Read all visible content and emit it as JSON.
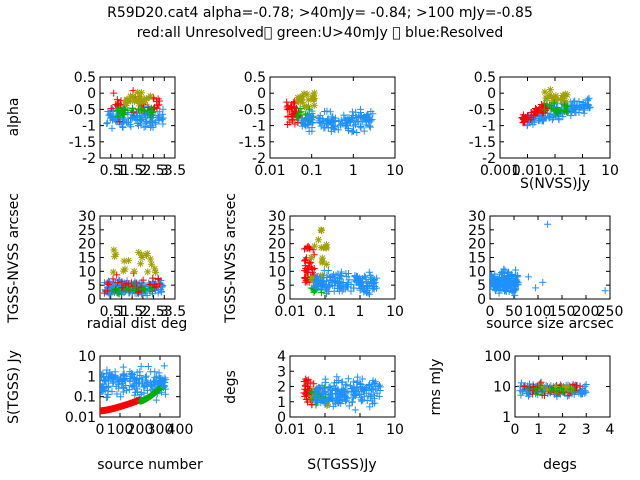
{
  "figure": {
    "title_line1": "R59D20.cat4 alpha=-0.78; >40mJy= -0.84; >100 mJy=-0.85",
    "title_line2": "red:all Unresolved\u0000 green:U>40mJy \u0000 blue:Resolved",
    "colors": {
      "red": "#ff0000",
      "green": "#00b000",
      "blue": "#1e90ff",
      "olive": "#a0a000",
      "axis": "#000000"
    }
  },
  "chart_data": [
    {
      "id": "p1",
      "type": "scatter",
      "ylabel": "alpha",
      "xlabel": "",
      "xscale": "linear",
      "yscale": "linear",
      "xlim": [
        0,
        3.5
      ],
      "ylim": [
        -2,
        0.5
      ],
      "xticks": [
        0.5,
        1,
        1.5,
        2,
        2.5,
        3,
        3.5
      ],
      "xticklabels": [
        "0.5",
        "1",
        "1.5",
        "2",
        "2.5",
        "3",
        "3.5"
      ],
      "yticks": [
        -2,
        -1.5,
        -1,
        -0.5,
        0,
        0.5
      ],
      "yticklabels": [
        "-2",
        "-1.5",
        "-1",
        "-0.5",
        "0",
        "0.5"
      ],
      "series": [
        {
          "color": "blue",
          "cluster": {
            "n": 140,
            "x": [
              0.3,
              3.0
            ],
            "y": [
              -1.2,
              -0.3
            ]
          }
        },
        {
          "color": "red",
          "cluster": {
            "n": 35,
            "x": [
              0.3,
              2.8
            ],
            "y": [
              -1.0,
              0.2
            ]
          }
        },
        {
          "color": "olive",
          "cluster": {
            "n": 25,
            "x": [
              1.2,
              2.5
            ],
            "y": [
              -0.6,
              0.3
            ]
          }
        },
        {
          "color": "green",
          "cluster": {
            "n": 25,
            "x": [
              0.8,
              2.5
            ],
            "y": [
              -0.8,
              -0.3
            ]
          }
        }
      ]
    },
    {
      "id": "p2",
      "type": "scatter",
      "ylabel": "",
      "xlabel": "",
      "xscale": "log",
      "yscale": "linear",
      "xlim": [
        0.01,
        10
      ],
      "ylim": [
        -2,
        0.5
      ],
      "xticks": [
        0.01,
        0.1,
        1,
        10
      ],
      "xticklabels": [
        "0.01",
        "0.1",
        "1",
        "10"
      ],
      "yticks": [
        -2,
        -1.5,
        -1,
        -0.5,
        0,
        0.5
      ],
      "yticklabels": [
        "-2",
        "-1.5",
        "-1",
        "-0.5",
        "0",
        "0.5"
      ],
      "series": [
        {
          "color": "red",
          "cluster": {
            "n": 40,
            "x": [
              0.025,
              0.05
            ],
            "y": [
              -1.2,
              0.0
            ]
          }
        },
        {
          "color": "olive",
          "cluster": {
            "n": 20,
            "x": [
              0.04,
              0.12
            ],
            "y": [
              -0.6,
              0.2
            ]
          }
        },
        {
          "color": "green",
          "cluster": {
            "n": 20,
            "x": [
              0.04,
              0.12
            ],
            "y": [
              -1.0,
              -0.4
            ]
          }
        },
        {
          "color": "blue",
          "cluster": {
            "n": 140,
            "x": [
              0.05,
              3.0
            ],
            "y": [
              -1.3,
              -0.4
            ]
          }
        }
      ]
    },
    {
      "id": "p3",
      "type": "scatter",
      "ylabel": "",
      "xlabel": "S(NVSS)Jy",
      "xscale": "log",
      "yscale": "linear",
      "xlim": [
        0.001,
        10
      ],
      "ylim": [
        -2,
        0.5
      ],
      "xticks": [
        0.001,
        0.01,
        0.1,
        1,
        10
      ],
      "xticklabels": [
        "0.001",
        "0.01",
        "0.1",
        "1",
        "10"
      ],
      "yticks": [
        -2,
        -1.5,
        -1,
        -0.5,
        0,
        0.5
      ],
      "yticklabels": [
        "-2",
        "-1.5",
        "-1",
        "-0.5",
        "0",
        "0.5"
      ],
      "series": [
        {
          "color": "blue",
          "cluster": {
            "n": 150,
            "x": [
              0.007,
              2.0
            ],
            "y": [
              -1.2,
              0.0
            ],
            "trend": 0.45
          }
        },
        {
          "color": "red",
          "cluster": {
            "n": 50,
            "x": [
              0.006,
              0.05
            ],
            "y": [
              -1.1,
              -0.2
            ],
            "trend": 0.5
          }
        },
        {
          "color": "olive",
          "cluster": {
            "n": 20,
            "x": [
              0.04,
              0.3
            ],
            "y": [
              -0.5,
              0.2
            ]
          }
        },
        {
          "color": "green",
          "cluster": {
            "n": 25,
            "x": [
              0.04,
              0.3
            ],
            "y": [
              -0.8,
              -0.2
            ]
          }
        }
      ]
    },
    {
      "id": "p4",
      "type": "scatter",
      "ylabel": "TGSS-NVSS arcsec",
      "xlabel": "radial dist deg",
      "xscale": "linear",
      "yscale": "linear",
      "xlim": [
        0,
        3.5
      ],
      "ylim": [
        0,
        30
      ],
      "xticks": [
        0.5,
        1,
        1.5,
        2,
        2.5,
        3,
        3.5
      ],
      "xticklabels": [
        "0.5",
        "1",
        "1.5",
        "2",
        "2.5",
        "3",
        "3.5"
      ],
      "yticks": [
        0,
        5,
        10,
        15,
        20,
        25,
        30
      ],
      "yticklabels": [
        "0",
        "5",
        "10",
        "15",
        "20",
        "25",
        "30"
      ],
      "series": [
        {
          "color": "blue",
          "cluster": {
            "n": 160,
            "x": [
              0.2,
              3.0
            ],
            "y": [
              0,
              8
            ]
          }
        },
        {
          "color": "red",
          "cluster": {
            "n": 35,
            "x": [
              0.2,
              2.8
            ],
            "y": [
              0,
              10
            ]
          }
        },
        {
          "color": "olive",
          "cluster": {
            "n": 20,
            "x": [
              0.5,
              2.6
            ],
            "y": [
              2,
              25
            ]
          }
        },
        {
          "color": "green",
          "cluster": {
            "n": 20,
            "x": [
              0.5,
              2.6
            ],
            "y": [
              0,
              6
            ]
          }
        }
      ]
    },
    {
      "id": "p5",
      "type": "scatter",
      "ylabel": "TGSS-NVSS arcsec",
      "xlabel": "",
      "xscale": "log",
      "yscale": "linear",
      "xlim": [
        0.01,
        10
      ],
      "ylim": [
        0,
        30
      ],
      "xticks": [
        0.01,
        0.1,
        1,
        10
      ],
      "xticklabels": [
        "0.01",
        "0.1",
        "1",
        "10"
      ],
      "yticks": [
        0,
        5,
        10,
        15,
        20,
        25,
        30
      ],
      "yticklabels": [
        "0",
        "5",
        "10",
        "15",
        "20",
        "25",
        "30"
      ],
      "series": [
        {
          "color": "red",
          "cluster": {
            "n": 45,
            "x": [
              0.025,
              0.05
            ],
            "y": [
              0,
              25
            ]
          }
        },
        {
          "color": "olive",
          "cluster": {
            "n": 20,
            "x": [
              0.04,
              0.12
            ],
            "y": [
              3,
              28
            ]
          }
        },
        {
          "color": "green",
          "cluster": {
            "n": 20,
            "x": [
              0.04,
              0.12
            ],
            "y": [
              0,
              8
            ]
          }
        },
        {
          "color": "blue",
          "cluster": {
            "n": 160,
            "x": [
              0.05,
              3.0
            ],
            "y": [
              0,
              12
            ]
          }
        }
      ]
    },
    {
      "id": "p6",
      "type": "scatter",
      "ylabel": "",
      "xlabel": "source size arcsec",
      "xscale": "linear",
      "yscale": "linear",
      "xlim": [
        0,
        250
      ],
      "ylim": [
        0,
        30
      ],
      "xticks": [
        0,
        50,
        100,
        150,
        200,
        250
      ],
      "xticklabels": [
        "0",
        "50",
        "100",
        "150",
        "200",
        "250"
      ],
      "yticks": [
        0,
        5,
        10,
        15,
        20,
        25,
        30
      ],
      "yticklabels": [
        "0",
        "5",
        "10",
        "15",
        "20",
        "25",
        "30"
      ],
      "series": [
        {
          "color": "blue",
          "cluster": {
            "n": 160,
            "x": [
              0,
              60
            ],
            "y": [
              0,
              12
            ]
          }
        },
        {
          "color": "blue",
          "points": [
            [
              120,
              27
            ],
            [
              240,
              3
            ],
            [
              95,
              4
            ],
            [
              110,
              6
            ],
            [
              80,
              8
            ]
          ]
        }
      ]
    },
    {
      "id": "p7",
      "type": "scatter",
      "ylabel": "S(TGSS) Jy",
      "xlabel": "source number",
      "xscale": "linear",
      "yscale": "log",
      "xlim": [
        0,
        400
      ],
      "ylim": [
        0.01,
        10
      ],
      "xticks": [
        0,
        100,
        200,
        300,
        400
      ],
      "xticklabels": [
        "0",
        "100",
        "200",
        "300",
        "400"
      ],
      "yticks": [
        0.01,
        0.1,
        1,
        10
      ],
      "yticklabels": [
        "0.01",
        "0.1",
        "1",
        "10"
      ],
      "series": [
        {
          "color": "blue",
          "cluster": {
            "n": 180,
            "x": [
              5,
              330
            ],
            "y": [
              0.05,
              5.0
            ]
          }
        },
        {
          "color": "red",
          "curve": {
            "x": [
              0,
              200
            ],
            "y": [
              0.02,
              0.07
            ],
            "n": 60
          }
        },
        {
          "color": "green",
          "curve": {
            "x": [
              200,
              300
            ],
            "y": [
              0.06,
              0.25
            ],
            "n": 35
          }
        }
      ]
    },
    {
      "id": "p8",
      "type": "scatter",
      "ylabel": "degs",
      "xlabel": "S(TGSS)Jy",
      "xscale": "log",
      "yscale": "linear",
      "xlim": [
        0.01,
        10
      ],
      "ylim": [
        0,
        4
      ],
      "xticks": [
        0.01,
        0.1,
        1,
        10
      ],
      "xticklabels": [
        "0.01",
        "0.1",
        "1",
        "10"
      ],
      "yticks": [
        0,
        1,
        2,
        3,
        4
      ],
      "yticklabels": [
        "0",
        "1",
        "2",
        "3",
        "4"
      ],
      "series": [
        {
          "color": "red",
          "cluster": {
            "n": 45,
            "x": [
              0.025,
              0.05
            ],
            "y": [
              0.3,
              2.8
            ]
          }
        },
        {
          "color": "olive",
          "cluster": {
            "n": 15,
            "x": [
              0.04,
              0.12
            ],
            "y": [
              0.2,
              2.5
            ]
          }
        },
        {
          "color": "green",
          "cluster": {
            "n": 20,
            "x": [
              0.04,
              0.12
            ],
            "y": [
              0.5,
              2.5
            ]
          }
        },
        {
          "color": "blue",
          "cluster": {
            "n": 170,
            "x": [
              0.05,
              4.0
            ],
            "y": [
              0.3,
              3.0
            ]
          }
        }
      ]
    },
    {
      "id": "p9",
      "type": "scatter",
      "ylabel": "rms mJy",
      "xlabel": "degs",
      "xscale": "linear",
      "yscale": "log",
      "xlim": [
        0,
        4
      ],
      "ylim": [
        1,
        100
      ],
      "xticks": [
        0,
        1,
        2,
        3,
        4
      ],
      "xticklabels": [
        "0",
        "1",
        "2",
        "3",
        "4"
      ],
      "yticks": [
        1,
        10,
        100
      ],
      "yticklabels": [
        "1",
        "10",
        "100"
      ],
      "series": [
        {
          "color": "blue",
          "cluster": {
            "n": 140,
            "x": [
              0.2,
              3.0
            ],
            "y": [
              4,
              15
            ]
          }
        },
        {
          "color": "red",
          "cluster": {
            "n": 35,
            "x": [
              0.2,
              2.8
            ],
            "y": [
              4,
              15
            ]
          }
        },
        {
          "color": "olive",
          "cluster": {
            "n": 10,
            "x": [
              1.0,
              2.5
            ],
            "y": [
              6,
              13
            ]
          }
        },
        {
          "color": "green",
          "cluster": {
            "n": 15,
            "x": [
              0.5,
              2.6
            ],
            "y": [
              5,
              12
            ]
          }
        }
      ]
    }
  ]
}
